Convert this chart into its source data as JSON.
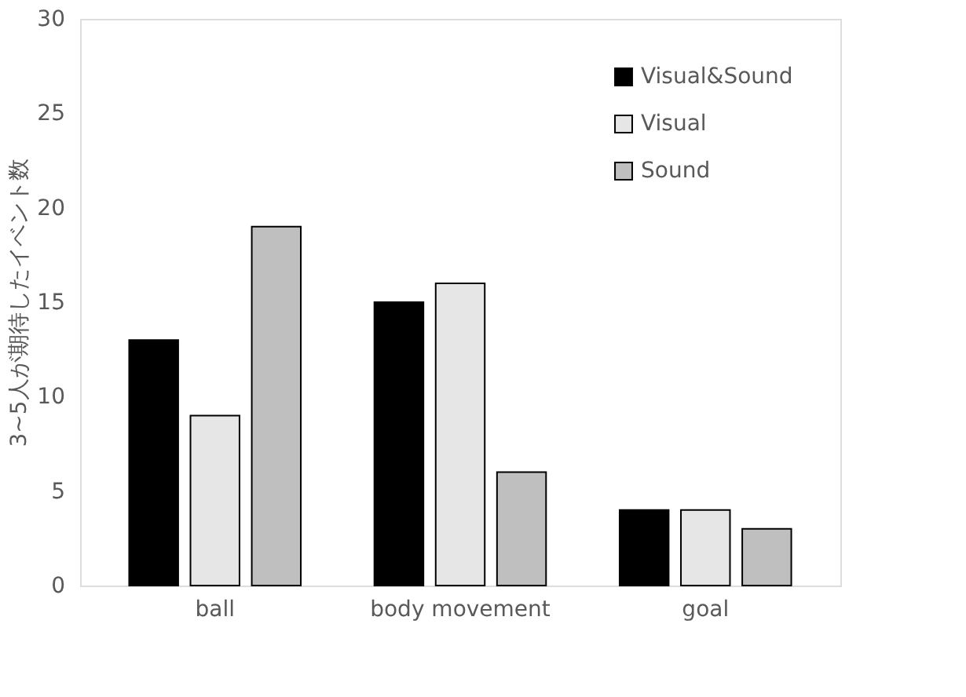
{
  "chart_data": {
    "type": "bar",
    "ylabel": "3~5人が期待したイベント数",
    "categories": [
      "ball",
      "body movement",
      "goal"
    ],
    "series": [
      {
        "name": "Visual&Sound",
        "color": "#000000",
        "values": [
          13,
          15,
          4
        ]
      },
      {
        "name": "Visual",
        "color": "#e6e6e6",
        "values": [
          9,
          16,
          4
        ]
      },
      {
        "name": "Sound",
        "color": "#bfbfbf",
        "values": [
          19,
          6,
          3
        ]
      }
    ],
    "ylim": [
      0,
      30
    ],
    "yticks": [
      0,
      5,
      10,
      15,
      20,
      25,
      30
    ],
    "grid": false,
    "legend": "top right"
  }
}
